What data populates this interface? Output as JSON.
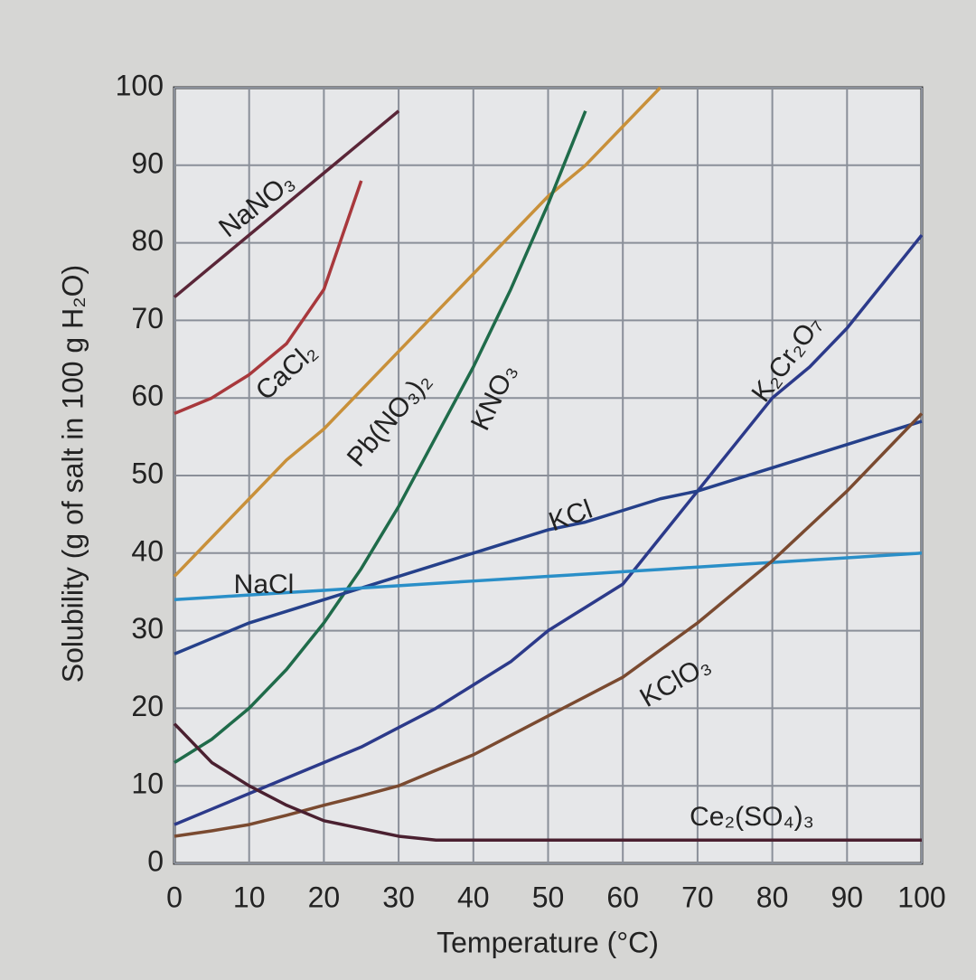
{
  "chart_data": {
    "type": "line",
    "y_label": "Solubility (g of salt in 100 g H₂O)",
    "x_label": "Temperature (°C)",
    "x": [
      0,
      5,
      10,
      15,
      20,
      25,
      30,
      35,
      40,
      45,
      50,
      55,
      60,
      65,
      70,
      75,
      80,
      85,
      90,
      95,
      100
    ],
    "xlim": [
      0,
      100
    ],
    "xticks": [
      0,
      10,
      20,
      30,
      40,
      50,
      60,
      70,
      80,
      90,
      100
    ],
    "ylim": [
      0,
      100
    ],
    "yticks": [
      0,
      10,
      20,
      30,
      40,
      50,
      60,
      70,
      80,
      90,
      100
    ],
    "grid": true,
    "series": [
      {
        "name": "NaNO₃",
        "color": "#5a2638",
        "values": [
          73,
          77,
          81,
          85,
          89,
          93,
          97,
          null,
          null,
          null,
          null,
          null,
          null,
          null,
          null,
          null,
          null,
          null,
          null,
          null,
          null
        ]
      },
      {
        "name": "CaCl₂",
        "color": "#a8383c",
        "values": [
          58,
          60,
          63,
          67,
          74,
          88,
          null,
          null,
          null,
          null,
          null,
          null,
          null,
          null,
          null,
          null,
          null,
          null,
          null,
          null,
          null
        ]
      },
      {
        "name": "Pb(NO₃)₂",
        "color": "#c8903a",
        "values": [
          37,
          42,
          47,
          52,
          56,
          61,
          66,
          71,
          76,
          81,
          86,
          90,
          95,
          100,
          null,
          null,
          null,
          null,
          null,
          null,
          null
        ]
      },
      {
        "name": "KNO₃",
        "color": "#1f6b4a",
        "values": [
          13,
          16,
          20,
          25,
          31,
          38,
          46,
          55,
          64,
          74,
          85,
          97,
          null,
          null,
          null,
          null,
          null,
          null,
          null,
          null,
          null
        ]
      },
      {
        "name": "K₂Cr₂O₇",
        "color": "#2c3a8a",
        "values": [
          5,
          7,
          9,
          11,
          13,
          15,
          17.5,
          20,
          23,
          26,
          30,
          33,
          36,
          42,
          48,
          54,
          60,
          64,
          69,
          75,
          81
        ]
      },
      {
        "name": "KCl",
        "color": "#25408a",
        "values": [
          27,
          29,
          31,
          32.5,
          34,
          35.5,
          37,
          38.5,
          40,
          41.5,
          43,
          44,
          45.5,
          47,
          48,
          49.5,
          51,
          52.5,
          54,
          55.5,
          57
        ]
      },
      {
        "name": "NaCl",
        "color": "#2a8fc8",
        "values": [
          34,
          34.3,
          34.6,
          34.9,
          35.2,
          35.5,
          35.8,
          36.1,
          36.4,
          36.7,
          37,
          37.3,
          37.6,
          37.9,
          38.2,
          38.5,
          38.8,
          39.1,
          39.4,
          39.7,
          40
        ]
      },
      {
        "name": "KClO₃",
        "color": "#7a4a30",
        "values": [
          3.5,
          4.2,
          5,
          6.2,
          7.5,
          8.7,
          10,
          12,
          14,
          16.5,
          19,
          21.5,
          24,
          27.5,
          31,
          35,
          39,
          43.5,
          48,
          53,
          58
        ]
      },
      {
        "name": "Ce₂(SO₄)₃",
        "color": "#4a2030",
        "values": [
          18,
          13,
          10,
          7.5,
          5.5,
          4.5,
          3.5,
          3,
          3,
          3,
          3,
          3,
          3,
          3,
          3,
          3,
          3,
          3,
          3,
          3,
          3
        ]
      }
    ]
  }
}
